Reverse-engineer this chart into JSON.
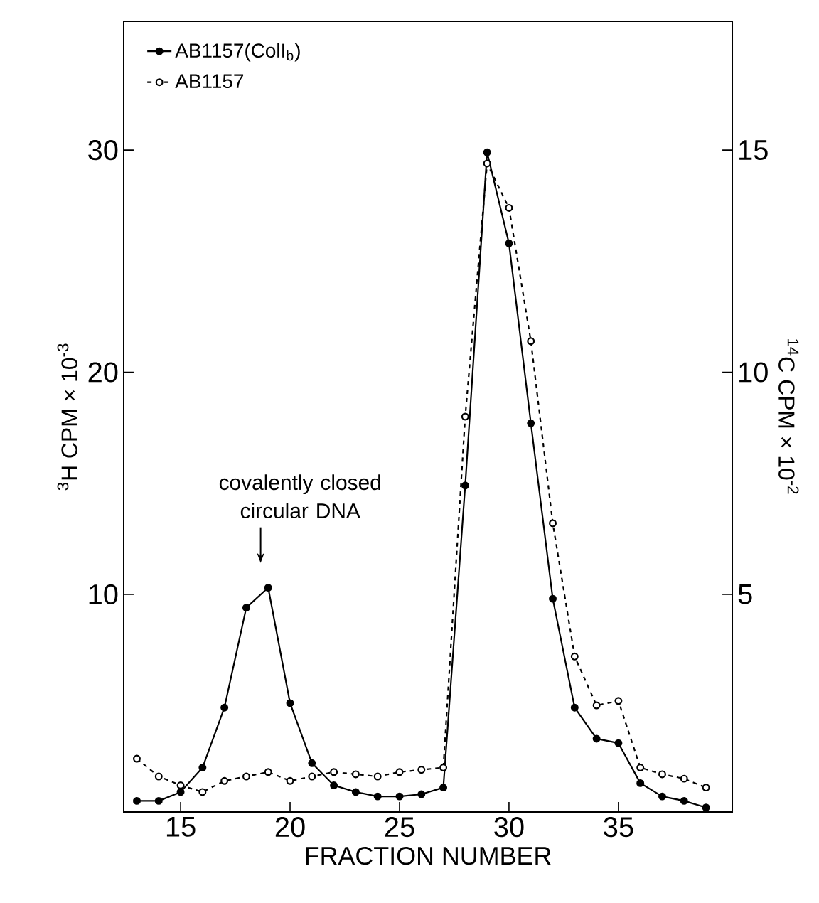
{
  "chart_data": {
    "type": "line",
    "xlabel": "FRACTION NUMBER",
    "ylabel": "$^{3}$H  CPM × 10$^{-3}$",
    "y2label": "$^{14}$C  CPM × 10$^{-2}$",
    "xlim": [
      12.4,
      40.2
    ],
    "xticks": [
      15,
      20,
      25,
      30,
      35
    ],
    "ylim": [
      0.2,
      35.8
    ],
    "yticks": [
      10,
      20,
      30
    ],
    "y2lim": [
      0.1,
      17.9
    ],
    "y2ticks": [
      5,
      10,
      15
    ],
    "legend": "top left",
    "marker": "circle",
    "grid": false,
    "annotations": [
      "covalently closed circular DNA"
    ],
    "x": [
      13,
      14,
      15,
      16,
      17,
      18,
      19,
      20,
      21,
      22,
      23,
      24,
      25,
      26,
      27,
      28,
      29,
      30,
      31,
      32,
      33,
      34,
      35,
      36,
      37,
      38,
      39
    ],
    "series": [
      {
        "name": "AB1157(ColI$_{b}$)",
        "color": "#000000",
        "line_style": "solid",
        "values": [
          0.7,
          0.7,
          1.1,
          2.2,
          4.9,
          9.4,
          10.3,
          5.1,
          2.4,
          1.4,
          1.1,
          0.9,
          0.9,
          1.0,
          1.3,
          14.9,
          29.9,
          25.8,
          17.7,
          9.8,
          4.9,
          3.5,
          3.3,
          1.5,
          0.9,
          0.7,
          0.4
        ]
      },
      {
        "name": "AB1157",
        "color": "#000000",
        "line_style": "dashed",
        "axis": "y2",
        "values": [
          1.3,
          0.9,
          0.7,
          0.55,
          0.8,
          0.9,
          1.0,
          0.8,
          0.9,
          1.0,
          0.95,
          0.9,
          1.0,
          1.05,
          1.1,
          9.0,
          14.7,
          13.7,
          10.7,
          6.6,
          3.6,
          2.5,
          2.6,
          1.1,
          0.95,
          0.85,
          0.65
        ]
      }
    ]
  }
}
